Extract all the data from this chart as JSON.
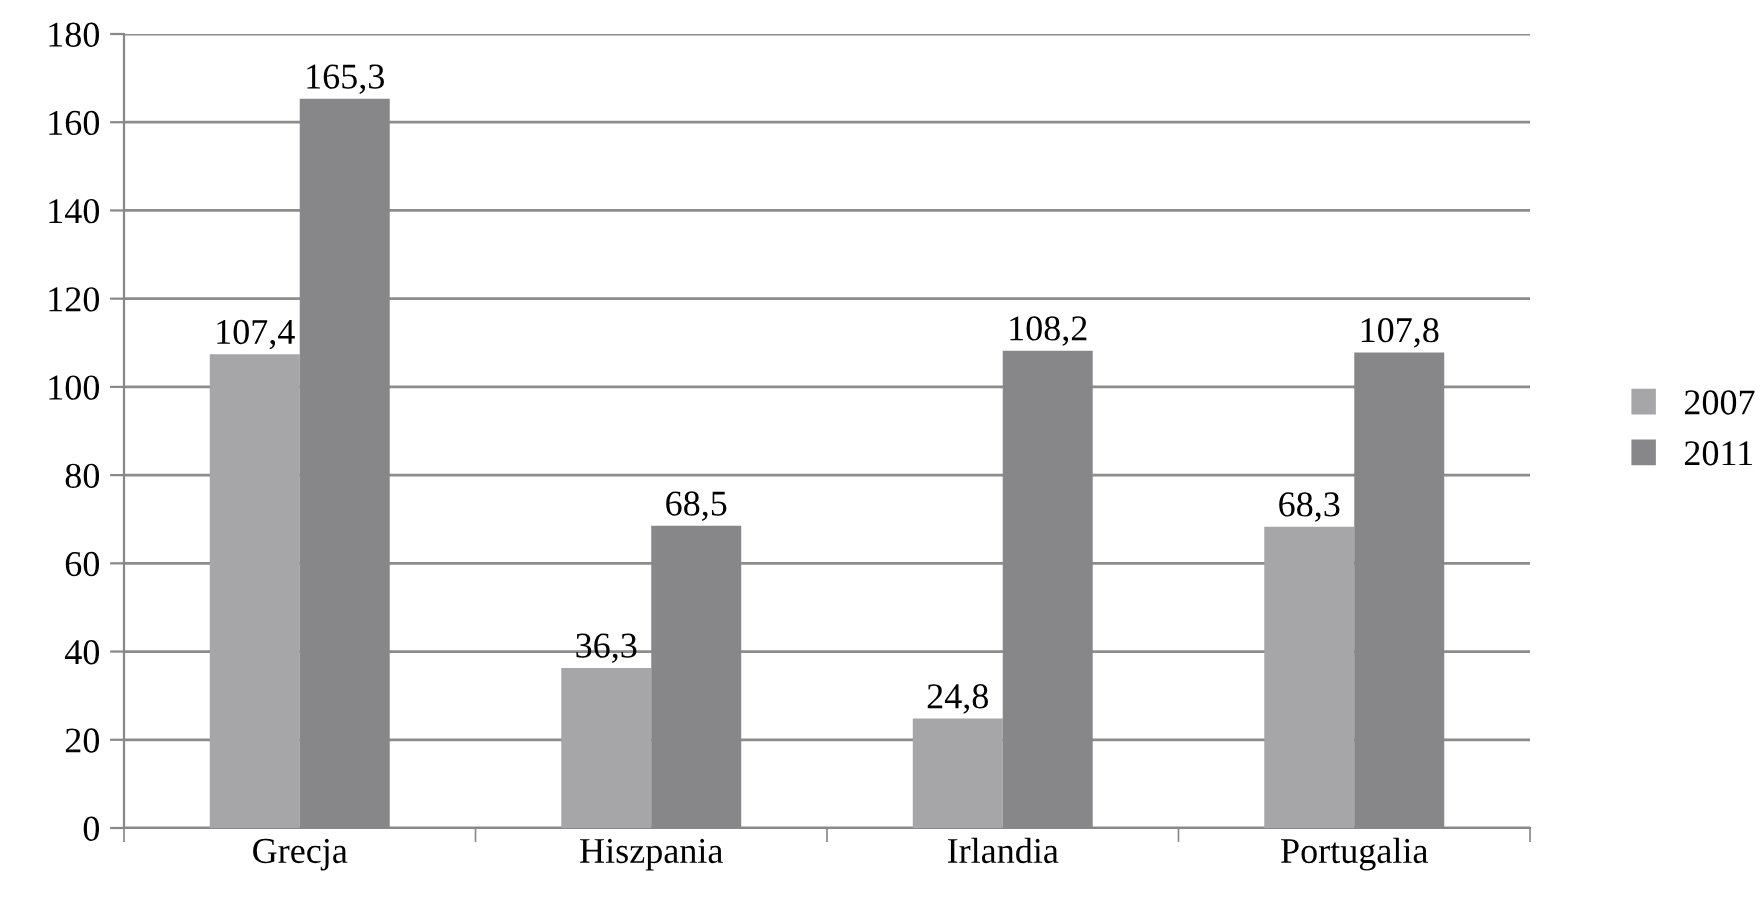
{
  "chart_data": {
    "type": "bar",
    "categories": [
      "Grecja",
      "Hiszpania",
      "Irlandia",
      "Portugalia"
    ],
    "series": [
      {
        "name": "2007",
        "color": "#a6a6a9",
        "values": [
          107.4,
          36.3,
          24.8,
          68.3
        ],
        "value_labels": [
          "107,4",
          "36,3",
          "24,8",
          "68,3"
        ]
      },
      {
        "name": "2011",
        "color": "#87878a",
        "values": [
          165.3,
          68.5,
          108.2,
          107.8
        ],
        "value_labels": [
          "165,3",
          "68,5",
          "108,2",
          "107,8"
        ]
      }
    ],
    "ylim": [
      0,
      180
    ],
    "yticks": [
      0,
      20,
      40,
      60,
      80,
      100,
      120,
      140,
      160,
      180
    ],
    "grid": "y",
    "legend": "right"
  }
}
